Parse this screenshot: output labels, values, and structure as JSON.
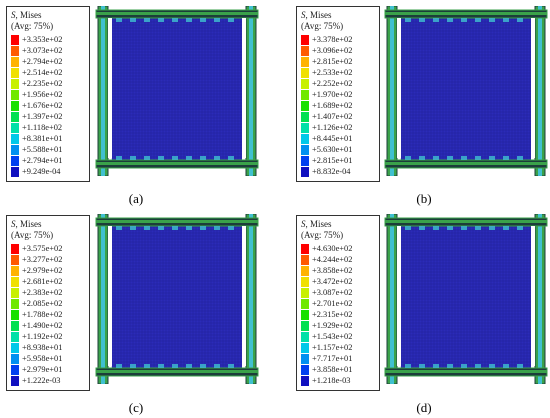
{
  "panels": [
    {
      "id": "a",
      "caption": "(a)",
      "legend": {
        "title_symbol": "S",
        "title_rest": ", Mises",
        "subtitle": "(Avg: 75%)",
        "values": [
          "+3.353e+02",
          "+3.073e+02",
          "+2.794e+02",
          "+2.514e+02",
          "+2.235e+02",
          "+1.956e+02",
          "+1.676e+02",
          "+1.397e+02",
          "+1.118e+02",
          "+8.381e+01",
          "+5.588e+01",
          "+2.794e+01",
          "+9.249e-04"
        ]
      }
    },
    {
      "id": "b",
      "caption": "(b)",
      "legend": {
        "title_symbol": "S",
        "title_rest": ", Mises",
        "subtitle": "(Avg: 75%)",
        "values": [
          "+3.378e+02",
          "+3.096e+02",
          "+2.815e+02",
          "+2.533e+02",
          "+2.252e+02",
          "+1.970e+02",
          "+1.689e+02",
          "+1.407e+02",
          "+1.126e+02",
          "+8.445e+01",
          "+5.630e+01",
          "+2.815e+01",
          "+8.832e-04"
        ]
      }
    },
    {
      "id": "c",
      "caption": "(c)",
      "legend": {
        "title_symbol": "S",
        "title_rest": ", Mises",
        "subtitle": "(Avg: 75%)",
        "values": [
          "+3.575e+02",
          "+3.277e+02",
          "+2.979e+02",
          "+2.681e+02",
          "+2.383e+02",
          "+2.085e+02",
          "+1.788e+02",
          "+1.490e+02",
          "+1.192e+02",
          "+8.938e+01",
          "+5.958e+01",
          "+2.979e+01",
          "+1.222e-03"
        ]
      }
    },
    {
      "id": "d",
      "caption": "(d)",
      "legend": {
        "title_symbol": "S",
        "title_rest": ", Mises",
        "subtitle": "(Avg: 75%)",
        "values": [
          "+4.630e+02",
          "+4.244e+02",
          "+3.858e+02",
          "+3.472e+02",
          "+3.087e+02",
          "+2.701e+02",
          "+2.315e+02",
          "+1.929e+02",
          "+1.543e+02",
          "+1.157e+02",
          "+7.717e+01",
          "+3.858e+01",
          "+1.218e-03"
        ]
      }
    }
  ],
  "colors": {
    "scale": [
      "#ff0000",
      "#ff5a00",
      "#ffb300",
      "#f0e000",
      "#c8f000",
      "#70e800",
      "#18e000",
      "#00e050",
      "#00e0a8",
      "#00c8e8",
      "#0090f0",
      "#0040f0",
      "#1010c0"
    ],
    "plate": "#2b2bb8",
    "mesh": "#1a1a80",
    "frame_green": "#3aa24a",
    "frame_cyan": "#40c0d0",
    "frame_dark": "#1c3d3a"
  }
}
